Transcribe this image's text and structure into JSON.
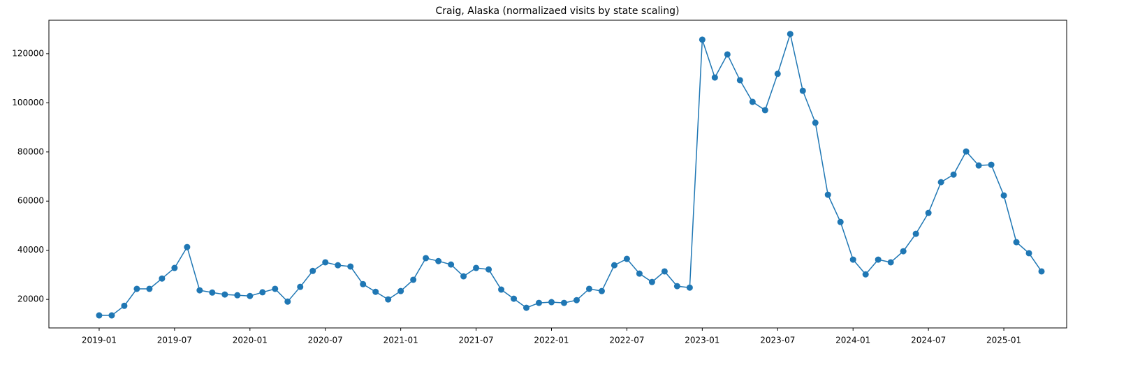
{
  "chart_data": {
    "type": "line",
    "title": "Craig, Alaska (normalizaed visits by state scaling)",
    "x": [
      "2019-01",
      "2019-02",
      "2019-03",
      "2019-04",
      "2019-05",
      "2019-06",
      "2019-07",
      "2019-08",
      "2019-09",
      "2019-10",
      "2019-11",
      "2019-12",
      "2020-01",
      "2020-02",
      "2020-03",
      "2020-04",
      "2020-05",
      "2020-06",
      "2020-07",
      "2020-08",
      "2020-09",
      "2020-10",
      "2020-11",
      "2020-12",
      "2021-01",
      "2021-02",
      "2021-03",
      "2021-04",
      "2021-05",
      "2021-06",
      "2021-07",
      "2021-08",
      "2021-09",
      "2021-10",
      "2021-11",
      "2021-12",
      "2022-01",
      "2022-02",
      "2022-03",
      "2022-04",
      "2022-05",
      "2022-06",
      "2022-07",
      "2022-08",
      "2022-09",
      "2022-10",
      "2022-11",
      "2022-12",
      "2023-01",
      "2023-02",
      "2023-03",
      "2023-04",
      "2023-05",
      "2023-06",
      "2023-07",
      "2023-08",
      "2023-09",
      "2023-10",
      "2023-11",
      "2023-12",
      "2024-01",
      "2024-02",
      "2024-03",
      "2024-04",
      "2024-05",
      "2024-06",
      "2024-07",
      "2024-08",
      "2024-09",
      "2024-10",
      "2024-11",
      "2024-12",
      "2025-01",
      "2025-02",
      "2025-03",
      "2025-04"
    ],
    "series": [
      {
        "color": "#1f77b4",
        "values": [
          13500,
          13500,
          17400,
          24300,
          24300,
          28500,
          32800,
          41300,
          23700,
          22800,
          22000,
          21700,
          21400,
          22900,
          24300,
          19100,
          25100,
          31600,
          35100,
          33900,
          33400,
          26200,
          23100,
          20000,
          23400,
          28000,
          36800,
          35600,
          34200,
          29400,
          32800,
          32200,
          24000,
          20300,
          16600,
          18600,
          18900,
          18600,
          19700,
          24300,
          23400,
          33900,
          36500,
          30500,
          27100,
          31400,
          25400,
          24800,
          125700,
          110300,
          119700,
          109200,
          100400,
          97000,
          111800,
          128000,
          104900,
          91900,
          62600,
          51500,
          36200,
          30200,
          36200,
          35100,
          39600,
          46700,
          55200,
          67700,
          70800,
          80200,
          74500,
          74800,
          62300,
          43300,
          38800,
          31400
        ]
      }
    ],
    "xlim": [
      "2018-09",
      "2025-06"
    ],
    "xticks": [
      "2019-01",
      "2019-07",
      "2020-01",
      "2020-07",
      "2021-01",
      "2021-07",
      "2022-01",
      "2022-07",
      "2023-01",
      "2023-07",
      "2024-01",
      "2024-07",
      "2025-01"
    ],
    "ylim": [
      8400,
      133600
    ],
    "yticks": [
      20000,
      40000,
      60000,
      80000,
      100000,
      120000
    ],
    "markers": true
  }
}
